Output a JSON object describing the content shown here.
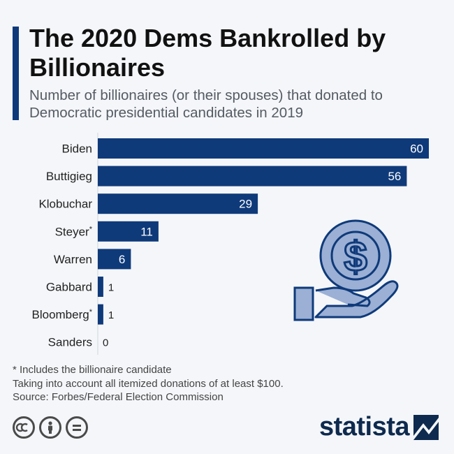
{
  "header": {
    "title": "The 2020 Dems Bankrolled by Billionaires",
    "subtitle": "Number of billionaires (or their spouses) that donated to Democratic presidential candidates in 2019"
  },
  "chart_data": {
    "type": "bar",
    "orientation": "horizontal",
    "categories": [
      "Biden",
      "Buttigieg",
      "Klobuchar",
      "Steyer",
      "Warren",
      "Gabbard",
      "Bloomberg",
      "Sanders"
    ],
    "category_marks": [
      "",
      "",
      "",
      "*",
      "",
      "",
      "*",
      ""
    ],
    "values": [
      60,
      56,
      29,
      11,
      6,
      1,
      1,
      0
    ],
    "xlim": [
      0,
      60
    ],
    "grid": false,
    "bar_color": "#0f3a7a"
  },
  "footer": {
    "note": "* Includes the billionaire candidate",
    "method": "Taking into account all itemized donations of at least $100.",
    "source": "Source: Forbes/Federal Election Commission"
  },
  "branding": {
    "logo": "statista",
    "license_icons": [
      "cc-icon",
      "person-icon",
      "equals-icon"
    ]
  },
  "illustration": {
    "icon": "hand-holding-dollar-coin-icon",
    "symbol": "$"
  }
}
